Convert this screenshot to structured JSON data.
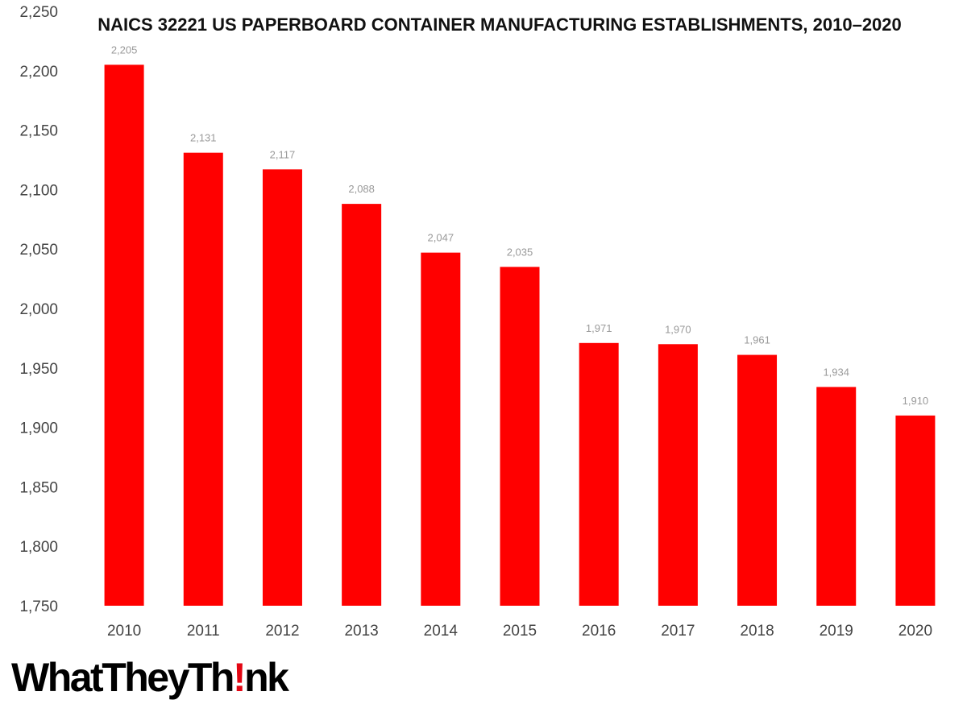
{
  "chart_data": {
    "type": "bar",
    "title": "NAICS 32221 US PAPERBOARD CONTAINER MANUFACTURING ESTABLISHMENTS, 2010–2020",
    "xlabel": "",
    "ylabel": "",
    "categories": [
      "2010",
      "2011",
      "2012",
      "2013",
      "2014",
      "2015",
      "2016",
      "2017",
      "2018",
      "2019",
      "2020"
    ],
    "values": [
      2205,
      2131,
      2117,
      2088,
      2047,
      2035,
      1971,
      1970,
      1961,
      1934,
      1910
    ],
    "data_labels": [
      "2,205",
      "2,131",
      "2,117",
      "2,088",
      "2,047",
      "2,035",
      "1,971",
      "1,970",
      "1,961",
      "1,934",
      "1,910"
    ],
    "ylim": [
      1750,
      2250
    ],
    "yticks": [
      1750,
      1800,
      1850,
      1900,
      1950,
      2000,
      2050,
      2100,
      2150,
      2200,
      2250
    ],
    "ytick_labels": [
      "1,750",
      "1,800",
      "1,850",
      "1,900",
      "1,950",
      "2,000",
      "2,050",
      "2,100",
      "2,150",
      "2,200",
      "2,250"
    ],
    "grid": false,
    "legend": "none",
    "bar_color": "#ff0000"
  },
  "logo": {
    "text_before": "WhatTheyTh",
    "text_mark": "!",
    "text_after": "nk",
    "mark_color": "#e30613"
  }
}
